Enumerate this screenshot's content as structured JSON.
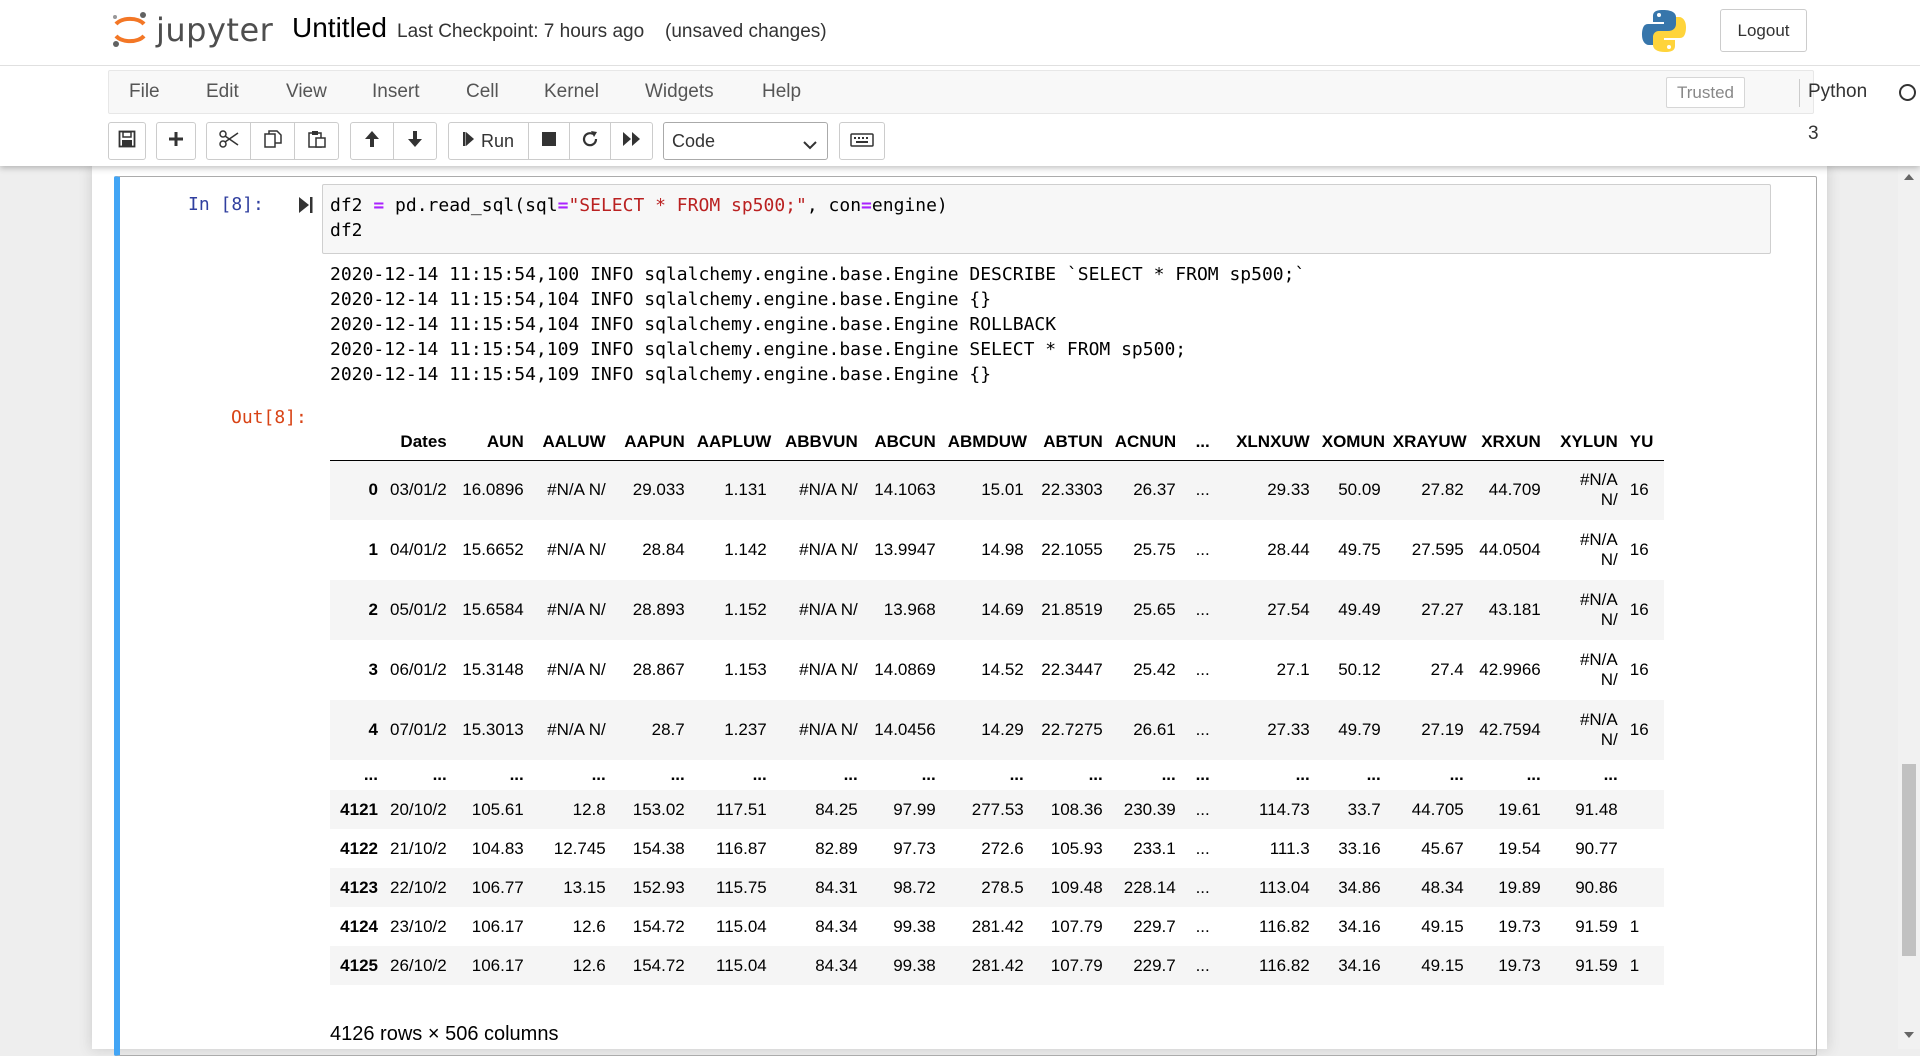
{
  "header": {
    "logo_text": "jupyter",
    "notebook_title": "Untitled",
    "checkpoint": "Last Checkpoint: 7 hours ago",
    "save_status": "(unsaved changes)",
    "logout_label": "Logout"
  },
  "menubar": {
    "items": [
      "File",
      "Edit",
      "View",
      "Insert",
      "Cell",
      "Kernel",
      "Widgets",
      "Help"
    ],
    "trusted_label": "Trusted",
    "kernel_name": "Python 3"
  },
  "toolbar": {
    "run_label": "Run",
    "cell_type": "Code"
  },
  "cell": {
    "in_prompt": "In [8]:",
    "code_lines": [
      "df2 = pd.read_sql(sql=\"SELECT * FROM sp500;\", con=engine)",
      "df2"
    ],
    "stderr_lines": [
      "2020-12-14 11:15:54,100 INFO sqlalchemy.engine.base.Engine DESCRIBE `SELECT * FROM sp500;`",
      "2020-12-14 11:15:54,104 INFO sqlalchemy.engine.base.Engine {}",
      "2020-12-14 11:15:54,104 INFO sqlalchemy.engine.base.Engine ROLLBACK",
      "2020-12-14 11:15:54,109 INFO sqlalchemy.engine.base.Engine SELECT * FROM sp500;",
      "2020-12-14 11:15:54,109 INFO sqlalchemy.engine.base.Engine {}"
    ],
    "out_prompt": "Out[8]:",
    "dataframe": {
      "columns": [
        "",
        "Dates",
        "AUN",
        "AALUW",
        "AAPUN",
        "AAPLUW",
        "ABBVUN",
        "ABCUN",
        "ABMDUW",
        "ABTUN",
        "ACNUN",
        "...",
        "XLNXUW",
        "XOMUN",
        "XRAYUW",
        "XRXUN",
        "XYLUN",
        "YU"
      ],
      "rows": [
        {
          "style": "tall",
          "cells": [
            "0",
            "03/01/2",
            "16.0896",
            "#N/A N/",
            "29.033",
            "1.131",
            "#N/A N/",
            "14.1063",
            "15.01",
            "22.3303",
            "26.37",
            "...",
            "29.33",
            "50.09",
            "27.82",
            "44.709",
            "#N/A N/",
            "16"
          ]
        },
        {
          "style": "tall",
          "cells": [
            "1",
            "04/01/2",
            "15.6652",
            "#N/A N/",
            "28.84",
            "1.142",
            "#N/A N/",
            "13.9947",
            "14.98",
            "22.1055",
            "25.75",
            "...",
            "28.44",
            "49.75",
            "27.595",
            "44.0504",
            "#N/A N/",
            "16"
          ]
        },
        {
          "style": "tall",
          "cells": [
            "2",
            "05/01/2",
            "15.6584",
            "#N/A N/",
            "28.893",
            "1.152",
            "#N/A N/",
            "13.968",
            "14.69",
            "21.8519",
            "25.65",
            "...",
            "27.54",
            "49.49",
            "27.27",
            "43.181",
            "#N/A N/",
            "16"
          ]
        },
        {
          "style": "tall",
          "cells": [
            "3",
            "06/01/2",
            "15.3148",
            "#N/A N/",
            "28.867",
            "1.153",
            "#N/A N/",
            "14.0869",
            "14.52",
            "22.3447",
            "25.42",
            "...",
            "27.1",
            "50.12",
            "27.4",
            "42.9966",
            "#N/A N/",
            "16"
          ]
        },
        {
          "style": "tall",
          "cells": [
            "4",
            "07/01/2",
            "15.3013",
            "#N/A N/",
            "28.7",
            "1.237",
            "#N/A N/",
            "14.0456",
            "14.29",
            "22.7275",
            "26.61",
            "...",
            "27.33",
            "49.79",
            "27.19",
            "42.7594",
            "#N/A N/",
            "16"
          ]
        },
        {
          "style": "ell",
          "cells": [
            "...",
            "...",
            "...",
            "...",
            "...",
            "...",
            "...",
            "...",
            "...",
            "...",
            "...",
            "...",
            "...",
            "...",
            "...",
            "...",
            "...",
            ""
          ]
        },
        {
          "style": "small",
          "cells": [
            "4121",
            "20/10/2",
            "105.61",
            "12.8",
            "153.02",
            "117.51",
            "84.25",
            "97.99",
            "277.53",
            "108.36",
            "230.39",
            "...",
            "114.73",
            "33.7",
            "44.705",
            "19.61",
            "91.48",
            ""
          ]
        },
        {
          "style": "small",
          "cells": [
            "4122",
            "21/10/2",
            "104.83",
            "12.745",
            "154.38",
            "116.87",
            "82.89",
            "97.73",
            "272.6",
            "105.93",
            "233.1",
            "...",
            "111.3",
            "33.16",
            "45.67",
            "19.54",
            "90.77",
            ""
          ]
        },
        {
          "style": "small",
          "cells": [
            "4123",
            "22/10/2",
            "106.77",
            "13.15",
            "152.93",
            "115.75",
            "84.31",
            "98.72",
            "278.5",
            "109.48",
            "228.14",
            "...",
            "113.04",
            "34.86",
            "48.34",
            "19.89",
            "90.86",
            ""
          ]
        },
        {
          "style": "small",
          "cells": [
            "4124",
            "23/10/2",
            "106.17",
            "12.6",
            "154.72",
            "115.04",
            "84.34",
            "99.38",
            "281.42",
            "107.79",
            "229.7",
            "...",
            "116.82",
            "34.16",
            "49.15",
            "19.73",
            "91.59",
            "1"
          ]
        },
        {
          "style": "small",
          "cells": [
            "4125",
            "26/10/2",
            "106.17",
            "12.6",
            "154.72",
            "115.04",
            "84.34",
            "99.38",
            "281.42",
            "107.79",
            "229.7",
            "...",
            "116.82",
            "34.16",
            "49.15",
            "19.73",
            "91.59",
            "1"
          ]
        }
      ],
      "dimensions": "4126 rows × 506 columns"
    }
  },
  "colors": {
    "accent_blue": "#42a5f5",
    "in_prompt": "#303f9f",
    "out_prompt": "#d84315",
    "string": "#ba2121",
    "operator": "#aa22ff"
  },
  "icons": [
    "jupyter-logo-icon",
    "python-logo-icon",
    "save-icon",
    "plus-icon",
    "cut-icon",
    "copy-icon",
    "paste-icon",
    "arrow-up-icon",
    "arrow-down-icon",
    "step-forward-icon",
    "stop-icon",
    "restart-icon",
    "fast-forward-icon",
    "keyboard-icon",
    "chevron-down-icon"
  ]
}
